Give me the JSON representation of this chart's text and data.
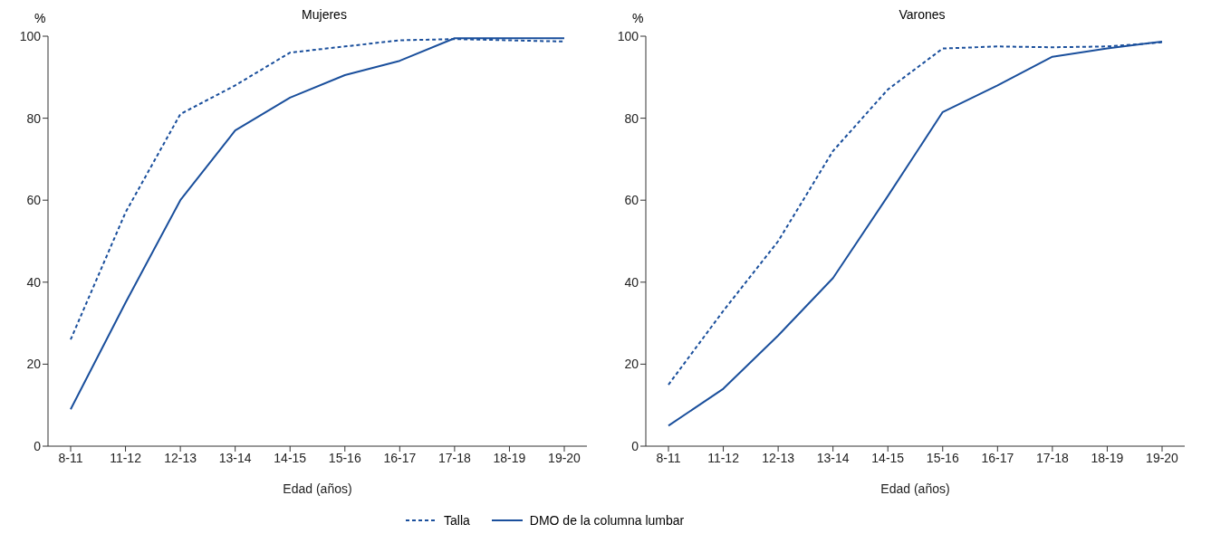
{
  "chart_data": [
    {
      "type": "line",
      "title": "Mujeres",
      "xlabel": "Edad (años)",
      "ylabel": "%",
      "categories": [
        "8-11",
        "11-12",
        "12-13",
        "13-14",
        "14-15",
        "15-16",
        "16-17",
        "17-18",
        "18-19",
        "19-20"
      ],
      "ylim": [
        0,
        100
      ],
      "yticks": [
        0,
        20,
        40,
        60,
        80,
        100
      ],
      "grid": false,
      "legend": "bottom",
      "series": [
        {
          "name": "Talla",
          "color": "#1a4f9c",
          "line_style": "dashed",
          "values": [
            26,
            57,
            81,
            88,
            96,
            97.5,
            99,
            99.3,
            99,
            98.7
          ]
        },
        {
          "name": "DMO de la columna lumbar",
          "color": "#1a4f9c",
          "line_style": "solid",
          "values": [
            9,
            35,
            60,
            77,
            85,
            90.5,
            94,
            99.5,
            99.5,
            99.5
          ]
        }
      ]
    },
    {
      "type": "line",
      "title": "Varones",
      "xlabel": "Edad (años)",
      "ylabel": "%",
      "categories": [
        "8-11",
        "11-12",
        "12-13",
        "13-14",
        "14-15",
        "15-16",
        "16-17",
        "17-18",
        "18-19",
        "19-20"
      ],
      "ylim": [
        0,
        100
      ],
      "yticks": [
        0,
        20,
        40,
        60,
        80,
        100
      ],
      "grid": false,
      "series": [
        {
          "color": "#1a4f9c",
          "line_style": "dashed",
          "values": [
            15,
            33,
            50,
            72,
            87,
            97,
            97.5,
            97.3,
            97.5,
            98.5
          ]
        },
        {
          "color": "#1a4f9c",
          "line_style": "solid",
          "values": [
            5,
            14,
            27,
            41,
            61,
            81.5,
            88,
            95,
            97,
            98.7
          ]
        }
      ]
    }
  ]
}
